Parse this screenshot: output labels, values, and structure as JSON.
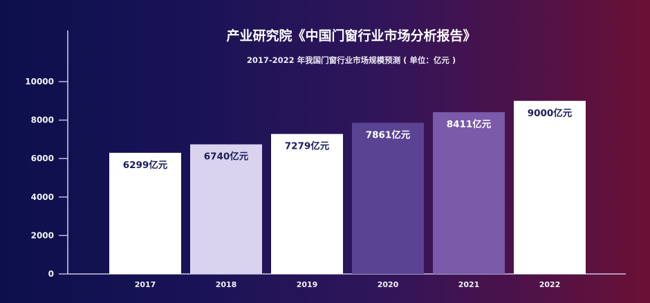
{
  "chart_data": {
    "type": "bar",
    "title": "产业研究院《中国门窗行业市场分析报告》",
    "subtitle": "2017-2022 年我国门窗行业市场规模预测 ( 单位：亿元 )",
    "xlabel": "",
    "ylabel": "",
    "categories": [
      "2017",
      "2018",
      "2019",
      "2020",
      "2021",
      "2022"
    ],
    "values": [
      6299,
      6740,
      7279,
      7861,
      8411,
      9000
    ],
    "data_labels": [
      "6299亿元",
      "6740亿元",
      "7279亿元",
      "7861亿元",
      "8411亿元",
      "9000亿元"
    ],
    "ylim": [
      0,
      10000
    ],
    "yticks": [
      0,
      2000,
      4000,
      6000,
      8000,
      10000
    ],
    "grid": false,
    "legend": "none",
    "bar_colors": [
      "#ffffff",
      "#d9d3ee",
      "#ffffff",
      "#594392",
      "#7b5aaa",
      "#ffffff"
    ],
    "label_colors": [
      "#1b1d5c",
      "#1b1d5c",
      "#1b1d5c",
      "#ffffff",
      "#ffffff",
      "#1b1d5c"
    ],
    "axis_color": "#c9c9e6"
  }
}
